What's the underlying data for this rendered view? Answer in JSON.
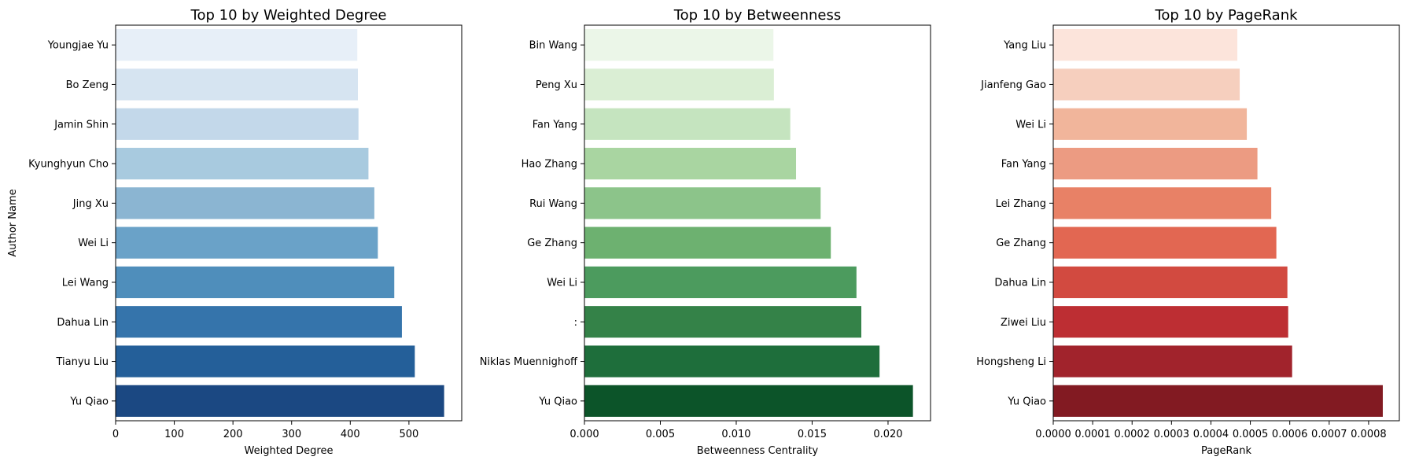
{
  "chart_data": [
    {
      "type": "bar",
      "orientation": "horizontal",
      "title": "Top 10 by Weighted Degree",
      "xlabel": "Weighted Degree",
      "ylabel": "Author Name",
      "categories": [
        "Youngjae Yu",
        "Bo Zeng",
        "Jamin Shin",
        "Kyunghyun Cho",
        "Jing Xu",
        "Wei Li",
        "Lei Wang",
        "Dahua Lin",
        "Tianyu Liu",
        "Yu Qiao"
      ],
      "values": [
        412,
        413,
        414,
        431,
        441,
        447,
        475,
        488,
        510,
        560
      ],
      "xlim": [
        0,
        590
      ],
      "xticks": [
        0,
        100,
        200,
        300,
        400,
        500
      ],
      "xtick_labels": [
        "0",
        "100",
        "200",
        "300",
        "400",
        "500"
      ],
      "colors": [
        "#e7eff8",
        "#d6e4f1",
        "#c3d8ea",
        "#a8cadf",
        "#8bb5d2",
        "#6aa2c8",
        "#4f8ebb",
        "#3574ab",
        "#245f99",
        "#1b4882"
      ],
      "grid": false
    },
    {
      "type": "bar",
      "orientation": "horizontal",
      "title": "Top 10 by Betweenness",
      "xlabel": "Betweenness Centrality",
      "ylabel": "",
      "categories": [
        "Bin Wang",
        "Peng Xu",
        "Fan Yang",
        "Hao Zhang",
        "Rui Wang",
        "Ge Zhang",
        "Wei Li",
        ":",
        "Niklas Muennighoff",
        "Yu Qiao"
      ],
      "values": [
        0.01245,
        0.01248,
        0.01356,
        0.01394,
        0.01556,
        0.01623,
        0.01792,
        0.01824,
        0.01944,
        0.02164
      ],
      "xlim": [
        0,
        0.0228
      ],
      "xticks": [
        0,
        0.005,
        0.01,
        0.015,
        0.02
      ],
      "xtick_labels": [
        "0.000",
        "0.005",
        "0.010",
        "0.015",
        "0.020"
      ],
      "colors": [
        "#ebf6e8",
        "#daeed4",
        "#c5e4bf",
        "#a9d5a1",
        "#8cc48a",
        "#6db170",
        "#4c9b5e",
        "#348248",
        "#1e6e3b",
        "#0c5429"
      ],
      "grid": false
    },
    {
      "type": "bar",
      "orientation": "horizontal",
      "title": "Top 10 by PageRank",
      "xlabel": "PageRank",
      "ylabel": "",
      "categories": [
        "Yang Liu",
        "Jianfeng Gao",
        "Wei Li",
        "Fan Yang",
        "Lei Zhang",
        "Ge Zhang",
        "Dahua Lin",
        "Ziwei Liu",
        "Hongsheng Li",
        "Yu Qiao"
      ],
      "values": [
        0.000467,
        0.000473,
        0.000491,
        0.000518,
        0.000553,
        0.000566,
        0.000594,
        0.000596,
        0.000606,
        0.000836
      ],
      "xlim": [
        0,
        0.000878
      ],
      "xticks": [
        0,
        0.0001,
        0.0002,
        0.0003,
        0.0004,
        0.0005,
        0.0006,
        0.0007,
        0.0008
      ],
      "xtick_labels": [
        "0.0000",
        "0.0001",
        "0.0002",
        "0.0003",
        "0.0004",
        "0.0005",
        "0.0006",
        "0.0007",
        "0.0008"
      ],
      "colors": [
        "#fce4db",
        "#f6cfbe",
        "#f1b59b",
        "#ec9b82",
        "#e88166",
        "#e26752",
        "#d24a40",
        "#bd2e33",
        "#a1232c",
        "#821a22"
      ],
      "grid": false
    }
  ]
}
